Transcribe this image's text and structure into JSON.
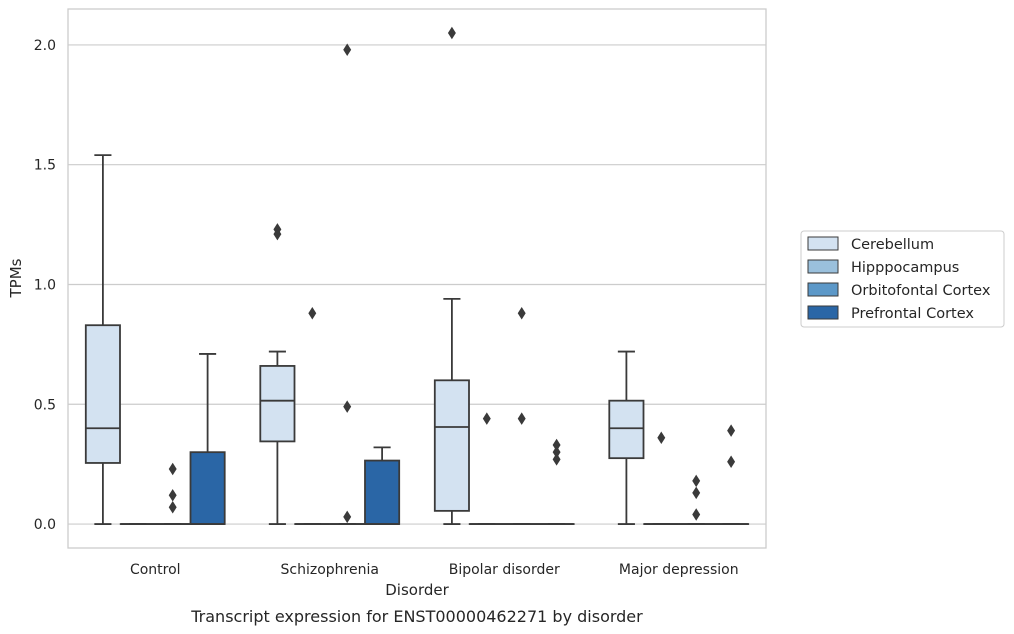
{
  "chart_data": {
    "type": "box",
    "title": "",
    "caption": "Transcript expression for ENST00000462271 by disorder",
    "xlabel": "Disorder",
    "ylabel": "TPMs",
    "ylim": [
      -0.1,
      2.15
    ],
    "yticks": [
      "0.0",
      "0.5",
      "1.0",
      "1.5",
      "2.0"
    ],
    "grid": "horizontal",
    "legend_placement": "right",
    "categories": [
      "Control",
      "Schizophrenia",
      "Bipolar disorder",
      "Major depression"
    ],
    "series": [
      {
        "name": "Cerebellum",
        "color": "#d3e2f1",
        "boxes": [
          {
            "category": "Control",
            "whisker_low": 0.0,
            "q1": 0.255,
            "median": 0.4,
            "q3": 0.83,
            "whisker_high": 1.54,
            "outliers": []
          },
          {
            "category": "Schizophrenia",
            "whisker_low": 0.0,
            "q1": 0.345,
            "median": 0.515,
            "q3": 0.66,
            "whisker_high": 0.72,
            "outliers": [
              1.21,
              1.23
            ]
          },
          {
            "category": "Bipolar disorder",
            "whisker_low": 0.0,
            "q1": 0.055,
            "median": 0.405,
            "q3": 0.6,
            "whisker_high": 0.94,
            "outliers": [
              2.05
            ]
          },
          {
            "category": "Major depression",
            "whisker_low": 0.0,
            "q1": 0.275,
            "median": 0.4,
            "q3": 0.515,
            "whisker_high": 0.72,
            "outliers": []
          }
        ]
      },
      {
        "name": "Hipppocampus",
        "color": "#9ac0dc",
        "boxes": [
          {
            "category": "Control",
            "whisker_low": 0.0,
            "q1": 0.0,
            "median": 0.0,
            "q3": 0.0,
            "whisker_high": 0.0,
            "outliers": []
          },
          {
            "category": "Schizophrenia",
            "whisker_low": 0.0,
            "q1": 0.0,
            "median": 0.0,
            "q3": 0.0,
            "whisker_high": 0.0,
            "outliers": [
              0.88
            ]
          },
          {
            "category": "Bipolar disorder",
            "whisker_low": 0.0,
            "q1": 0.0,
            "median": 0.0,
            "q3": 0.0,
            "whisker_high": 0.0,
            "outliers": [
              0.44
            ]
          },
          {
            "category": "Major depression",
            "whisker_low": 0.0,
            "q1": 0.0,
            "median": 0.0,
            "q3": 0.0,
            "whisker_high": 0.0,
            "outliers": [
              0.36
            ]
          }
        ]
      },
      {
        "name": "Orbitofontal Cortex",
        "color": "#5c98c8",
        "boxes": [
          {
            "category": "Control",
            "whisker_low": 0.0,
            "q1": 0.0,
            "median": 0.0,
            "q3": 0.0,
            "whisker_high": 0.0,
            "outliers": [
              0.07,
              0.12,
              0.23
            ]
          },
          {
            "category": "Schizophrenia",
            "whisker_low": 0.0,
            "q1": 0.0,
            "median": 0.0,
            "q3": 0.0,
            "whisker_high": 0.0,
            "outliers": [
              0.03,
              0.49,
              1.98
            ]
          },
          {
            "category": "Bipolar disorder",
            "whisker_low": 0.0,
            "q1": 0.0,
            "median": 0.0,
            "q3": 0.0,
            "whisker_high": 0.0,
            "outliers": [
              0.44,
              0.88
            ]
          },
          {
            "category": "Major depression",
            "whisker_low": 0.0,
            "q1": 0.0,
            "median": 0.0,
            "q3": 0.0,
            "whisker_high": 0.0,
            "outliers": [
              0.04,
              0.13,
              0.18
            ]
          }
        ]
      },
      {
        "name": "Prefrontal Cortex",
        "color": "#2a66a6",
        "boxes": [
          {
            "category": "Control",
            "whisker_low": 0.0,
            "q1": 0.0,
            "median": 0.0,
            "q3": 0.3,
            "whisker_high": 0.71,
            "outliers": []
          },
          {
            "category": "Schizophrenia",
            "whisker_low": 0.0,
            "q1": 0.0,
            "median": 0.0,
            "q3": 0.265,
            "whisker_high": 0.32,
            "outliers": []
          },
          {
            "category": "Bipolar disorder",
            "whisker_low": 0.0,
            "q1": 0.0,
            "median": 0.0,
            "q3": 0.0,
            "whisker_high": 0.0,
            "outliers": [
              0.27,
              0.3,
              0.33
            ]
          },
          {
            "category": "Major depression",
            "whisker_low": 0.0,
            "q1": 0.0,
            "median": 0.0,
            "q3": 0.0,
            "whisker_high": 0.0,
            "outliers": [
              0.26,
              0.39
            ]
          }
        ]
      }
    ]
  }
}
